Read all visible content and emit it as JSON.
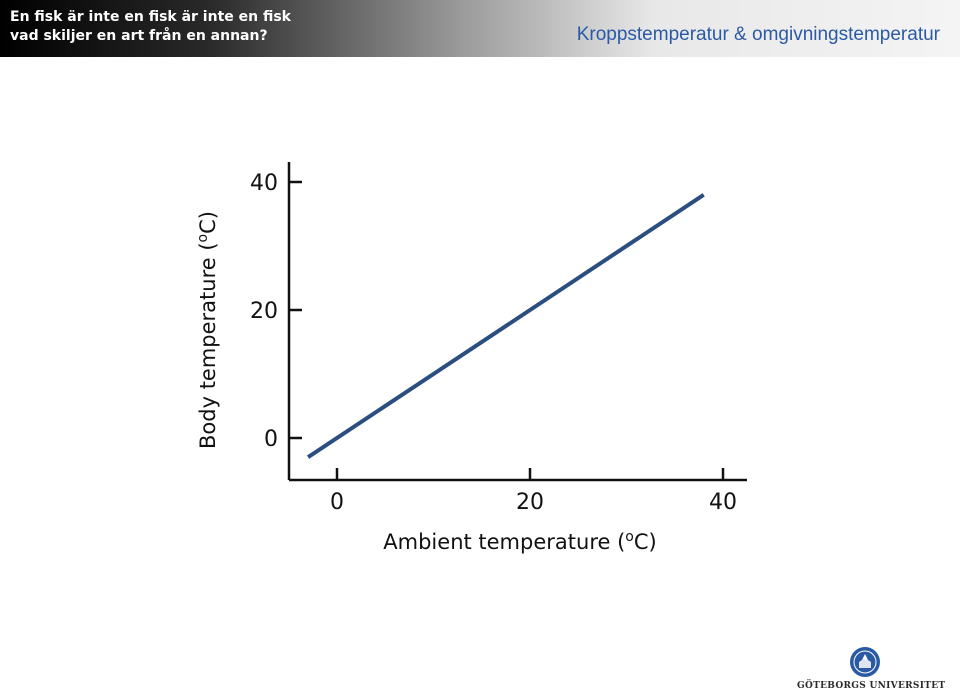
{
  "header": {
    "course_line1": "En fisk är inte en fisk är inte en fisk",
    "course_line2": "vad skiljer en art från en annan?",
    "slide_title": "Kroppstemperatur & omgivningstemperatur"
  },
  "chart_data": {
    "type": "line",
    "series": [
      {
        "x": [
          -3,
          38
        ],
        "y": [
          -3,
          38
        ],
        "color": "#2a4e7f"
      }
    ],
    "xlabel": "Ambient temperature (oC)",
    "xlabel_main": "Ambient temperature (",
    "xlabel_sup": "o",
    "xlabel_end": "C)",
    "ylabel": "Body temperature (oC)",
    "ylabel_main": "Body temperature (",
    "ylabel_sup": "o",
    "ylabel_end": "C)",
    "xticks": [
      "0",
      "20",
      "40"
    ],
    "yticks": [
      "0",
      "20",
      "40"
    ],
    "xlim": [
      -5,
      42
    ],
    "ylim": [
      -5,
      42
    ],
    "grid": false
  },
  "footer": {
    "logo_text": "GÖTEBORGS UNIVERSITET",
    "logo_icon": "university-seal-icon",
    "accent_color": "#2a5aa6"
  }
}
